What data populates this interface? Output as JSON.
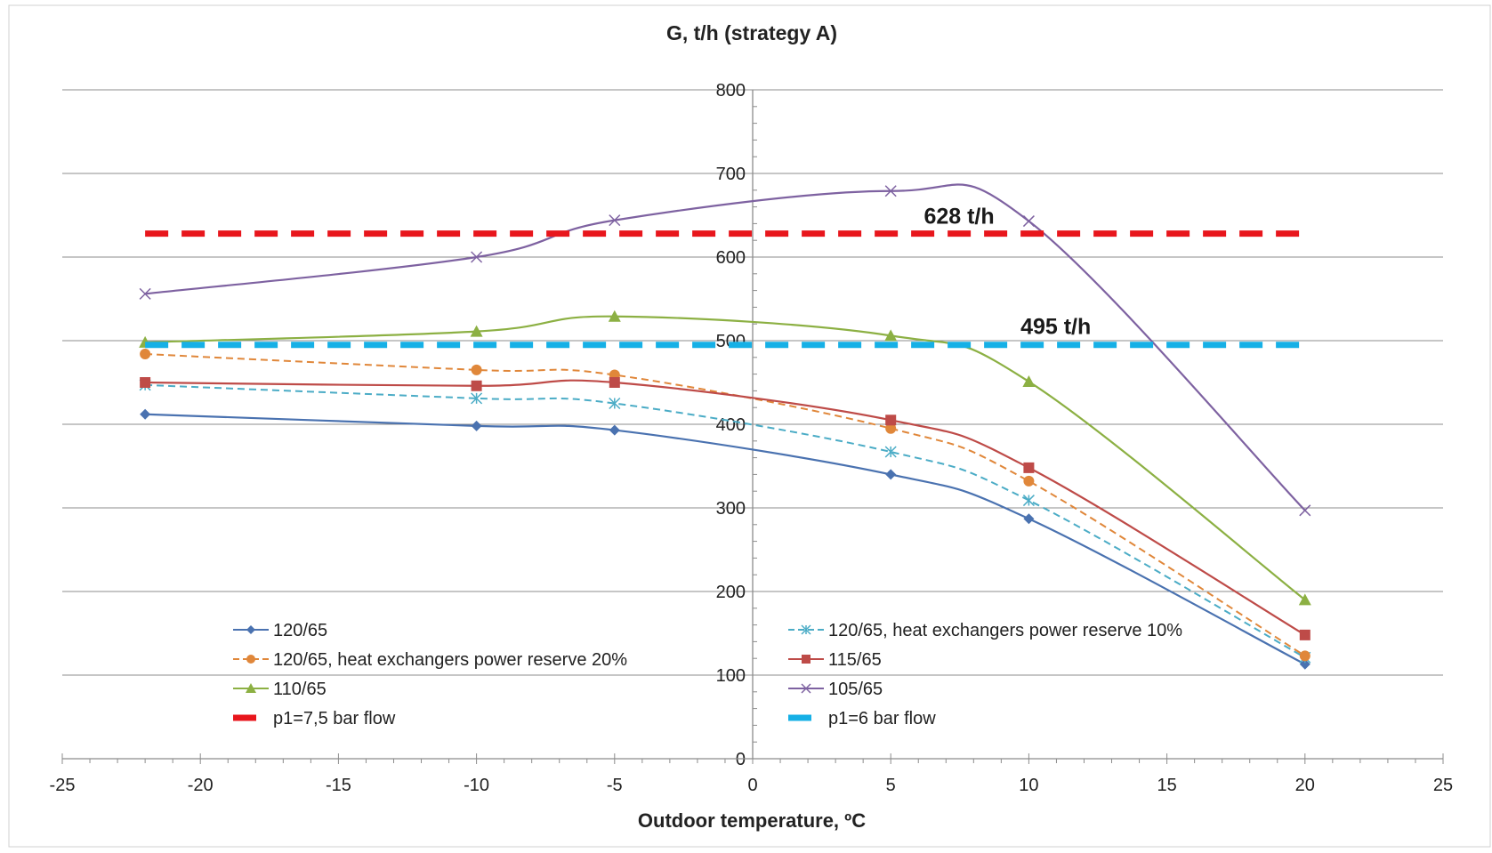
{
  "chart_data": {
    "type": "line",
    "title": "G, t/h (strategy A)",
    "xlabel": "Outdoor temperature, ºC",
    "ylabel": "",
    "xlim": [
      -25,
      25
    ],
    "ylim": [
      0,
      800
    ],
    "xticks": [
      -25,
      -20,
      -15,
      -10,
      -5,
      0,
      5,
      10,
      15,
      20,
      25
    ],
    "yticks": [
      0,
      100,
      200,
      300,
      400,
      500,
      600,
      700,
      800
    ],
    "grid": "horizontal",
    "legend_position": "bottom",
    "series": [
      {
        "name": "120/65",
        "color": "#4a72b0",
        "dash": "solid",
        "marker": "diamond",
        "x": [
          -22,
          -10,
          -5,
          5,
          10,
          20
        ],
        "values": [
          412,
          398,
          393,
          340,
          287,
          113
        ]
      },
      {
        "name": "120/65, heat exchangers power reserve 10%",
        "color": "#4bacc6",
        "dash": "dashed",
        "marker": "star",
        "x": [
          -22,
          -10,
          -5,
          5,
          10,
          20
        ],
        "values": [
          447,
          431,
          425,
          367,
          309,
          121
        ]
      },
      {
        "name": "120/65, heat exchangers power reserve 20%",
        "color": "#e0873a",
        "dash": "dashed",
        "marker": "circle",
        "x": [
          -22,
          -10,
          -5,
          5,
          10,
          20
        ],
        "values": [
          484,
          465,
          459,
          395,
          332,
          123
        ]
      },
      {
        "name": "115/65",
        "color": "#be4b48",
        "dash": "solid",
        "marker": "square",
        "x": [
          -22,
          -10,
          -5,
          5,
          10,
          20
        ],
        "values": [
          450,
          446,
          450,
          405,
          348,
          148
        ]
      },
      {
        "name": "110/65",
        "color": "#8cb043",
        "dash": "solid",
        "marker": "triangle",
        "x": [
          -22,
          -10,
          -5,
          5,
          10,
          20
        ],
        "values": [
          498,
          511,
          529,
          506,
          451,
          190
        ]
      },
      {
        "name": "105/65",
        "color": "#7e62a1",
        "dash": "solid",
        "marker": "x",
        "x": [
          -22,
          -10,
          -5,
          5,
          10,
          20
        ],
        "values": [
          556,
          600,
          644,
          679,
          643,
          297
        ]
      },
      {
        "name": "p1=7,5 bar flow",
        "color": "#e8161c",
        "dash": "thick-dashed",
        "marker": "none",
        "x": [
          -22,
          20
        ],
        "values": [
          628,
          628
        ]
      },
      {
        "name": "p1=6 bar flow",
        "color": "#16b0e6",
        "dash": "thick-dashed",
        "marker": "none",
        "x": [
          -22,
          20
        ],
        "values": [
          495,
          495
        ]
      }
    ],
    "annotations": [
      {
        "text": "628 t/h",
        "x": 6.2,
        "y": 640
      },
      {
        "text": "495 t/h",
        "x": 9.7,
        "y": 508
      }
    ],
    "legend_order": [
      "120/65",
      "120/65, heat exchangers power reserve 10%",
      "120/65, heat exchangers power reserve 20%",
      "115/65",
      "110/65",
      "105/65",
      "p1=7,5 bar flow",
      "p1=6 bar flow"
    ]
  }
}
